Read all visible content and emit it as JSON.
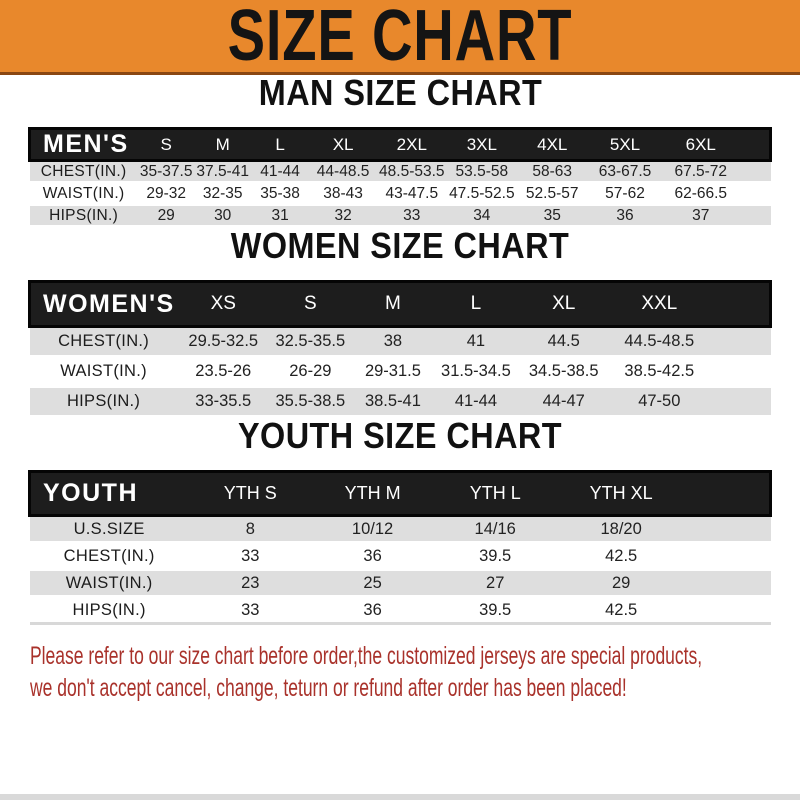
{
  "banner": {
    "title": "SIZE CHART"
  },
  "sections": [
    {
      "heading": "MAN SIZE CHART",
      "header_label": "MEN'S",
      "columns": [
        "S",
        "M",
        "L",
        "XL",
        "2XL",
        "3XL",
        "4XL",
        "5XL",
        "6XL"
      ],
      "rows": [
        {
          "label": "CHEST(IN.)",
          "values": [
            "35-37.5",
            "37.5-41",
            "41-44",
            "44-48.5",
            "48.5-53.5",
            "53.5-58",
            "58-63",
            "63-67.5",
            "67.5-72"
          ]
        },
        {
          "label": "WAIST(IN.)",
          "values": [
            "29-32",
            "32-35",
            "35-38",
            "38-43",
            "43-47.5",
            "47.5-52.5",
            "52.5-57",
            "57-62",
            "62-66.5"
          ]
        },
        {
          "label": "HIPS(IN.)",
          "values": [
            "29",
            "30",
            "31",
            "32",
            "33",
            "34",
            "35",
            "36",
            "37"
          ]
        }
      ]
    },
    {
      "heading": "WOMEN SIZE CHART",
      "header_label": "WOMEN'S",
      "columns": [
        "XS",
        "S",
        "M",
        "L",
        "XL",
        "XXL"
      ],
      "rows": [
        {
          "label": "CHEST(IN.)",
          "values": [
            "29.5-32.5",
            "32.5-35.5",
            "38",
            "41",
            "44.5",
            "44.5-48.5"
          ]
        },
        {
          "label": "WAIST(IN.)",
          "values": [
            "23.5-26",
            "26-29",
            "29-31.5",
            "31.5-34.5",
            "34.5-38.5",
            "38.5-42.5"
          ]
        },
        {
          "label": "HIPS(IN.)",
          "values": [
            "33-35.5",
            "35.5-38.5",
            "38.5-41",
            "41-44",
            "44-47",
            "47-50"
          ]
        }
      ]
    },
    {
      "heading": "YOUTH SIZE CHART",
      "header_label": "YOUTH",
      "columns": [
        "YTH S",
        "YTH M",
        "YTH L",
        "YTH XL"
      ],
      "rows": [
        {
          "label": "U.S.SIZE",
          "values": [
            "8",
            "10/12",
            "14/16",
            "18/20"
          ]
        },
        {
          "label": "CHEST(IN.)",
          "values": [
            "33",
            "36",
            "39.5",
            "42.5"
          ]
        },
        {
          "label": "WAIST(IN.)",
          "values": [
            "23",
            "25",
            "27",
            "29"
          ]
        },
        {
          "label": "HIPS(IN.)",
          "values": [
            "33",
            "36",
            "39.5",
            "42.5"
          ]
        }
      ]
    }
  ],
  "footer": {
    "lines": [
      "Please refer to our size chart before order,the customized jerseys are special products,",
      "we don't accept cancel, change, teturn or refund after order has been placed!"
    ]
  },
  "colors": {
    "banner_bg": "#E8882C",
    "banner_border": "#8A4712",
    "banner_text": "#141414",
    "table_header_bg": "#1D1D1D",
    "table_header_text": "#FFFFFF",
    "row_stripe": "#DEDEDE",
    "footer_text": "#A9322B"
  }
}
